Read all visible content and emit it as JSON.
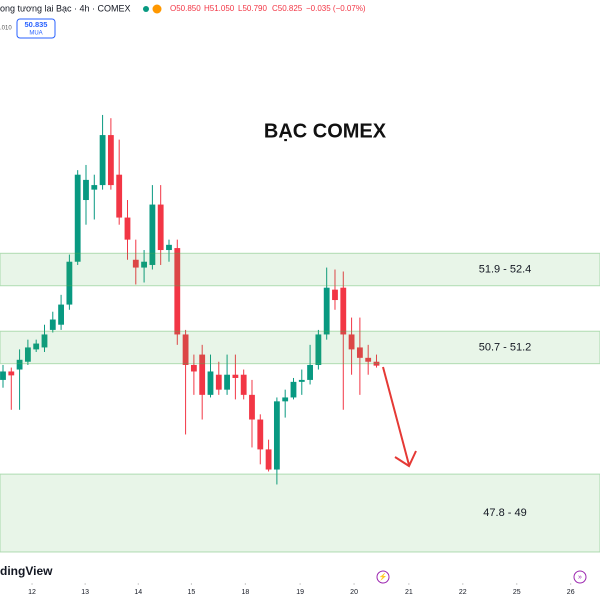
{
  "header": {
    "symbol": "ong tương lai Bạc · 4h · COMEX",
    "open": "O50.850",
    "high": "H51.050",
    "low": "L50.790",
    "close": "C50.825",
    "change": "−0.035 (−0.07%)",
    "price": "50.835",
    "action": "MUA",
    "spread": ".010"
  },
  "brand": "dingView",
  "chart_data": {
    "type": "candlestick",
    "title": "BẠC COMEX",
    "open": [
      50.45,
      50.58,
      50.61,
      50.73,
      50.92,
      50.95,
      51.22,
      51.3,
      51.61,
      52.27,
      53.22,
      53.38,
      53.45,
      54.22,
      53.61,
      52.95,
      52.3,
      52.18,
      52.22,
      53.15,
      52.45,
      52.48,
      51.15,
      50.68,
      50.84,
      50.22,
      50.53,
      50.3,
      50.53,
      50.53,
      50.22,
      49.84,
      49.38,
      49.07,
      50.12,
      50.18,
      50.42,
      50.45,
      50.68,
      51.15,
      51.84,
      51.87,
      51.15,
      50.95,
      50.79,
      50.73
    ],
    "high": [
      50.68,
      50.64,
      50.92,
      51.07,
      51.07,
      51.3,
      51.5,
      51.76,
      52.38,
      53.68,
      53.76,
      53.61,
      54.53,
      54.48,
      54.15,
      53.22,
      52.61,
      52.45,
      53.45,
      53.45,
      52.61,
      52.61,
      51.22,
      50.84,
      50.99,
      50.84,
      50.73,
      50.84,
      50.84,
      50.61,
      50.45,
      49.92,
      49.53,
      50.18,
      50.3,
      50.48,
      50.61,
      50.99,
      51.22,
      52.18,
      52.15,
      52.12,
      51.41,
      51.41,
      50.99,
      50.84
    ],
    "low": [
      50.33,
      49.99,
      49.99,
      50.68,
      50.88,
      50.88,
      51.18,
      51.22,
      51.53,
      52.22,
      52.84,
      52.92,
      53.38,
      53.38,
      52.84,
      52.3,
      51.92,
      51.95,
      52.15,
      52.22,
      52.27,
      50.99,
      49.61,
      50.22,
      49.84,
      50.18,
      50.22,
      50.22,
      50.15,
      50.15,
      49.41,
      49.15,
      49.04,
      48.84,
      49.87,
      50.15,
      50.22,
      50.38,
      50.61,
      51.07,
      51.53,
      49.99,
      50.53,
      50.22,
      50.53,
      50.64
    ],
    "close": [
      50.58,
      50.52,
      50.76,
      50.95,
      51.01,
      51.15,
      51.38,
      51.61,
      52.27,
      53.61,
      53.53,
      53.45,
      54.22,
      53.45,
      52.95,
      52.61,
      52.18,
      52.27,
      53.15,
      52.45,
      52.53,
      51.15,
      50.68,
      50.58,
      50.22,
      50.58,
      50.3,
      50.53,
      50.48,
      50.22,
      49.84,
      49.38,
      49.07,
      50.12,
      50.18,
      50.42,
      50.45,
      50.68,
      51.15,
      51.87,
      51.68,
      51.15,
      50.92,
      50.79,
      50.73,
      50.67
    ],
    "up_color": "#089981",
    "down_color": "#f23645",
    "zones": [
      {
        "label": "51.9 - 52.4",
        "low": 51.9,
        "high": 52.4
      },
      {
        "label": "50.7 - 51.2",
        "low": 50.7,
        "high": 51.2
      },
      {
        "label": "47.8 - 49",
        "low": 47.8,
        "high": 49
      }
    ],
    "zone_color": "#4caf50",
    "ylim": [
      47.6,
      56.3
    ],
    "xlim": [
      -0.36,
      71.93
    ],
    "xticks": [
      {
        "value": 3.5,
        "label": "12"
      },
      {
        "value": 9.9,
        "label": "13"
      },
      {
        "value": 16.3,
        "label": "14"
      },
      {
        "value": 22.7,
        "label": "15"
      },
      {
        "value": 29.2,
        "label": "18"
      },
      {
        "value": 35.8,
        "label": "19"
      },
      {
        "value": 42.3,
        "label": "20"
      },
      {
        "value": 48.9,
        "label": "21"
      },
      {
        "value": 55.4,
        "label": "22"
      },
      {
        "value": 61.9,
        "label": "25"
      },
      {
        "value": 68.4,
        "label": "26"
      }
    ]
  }
}
